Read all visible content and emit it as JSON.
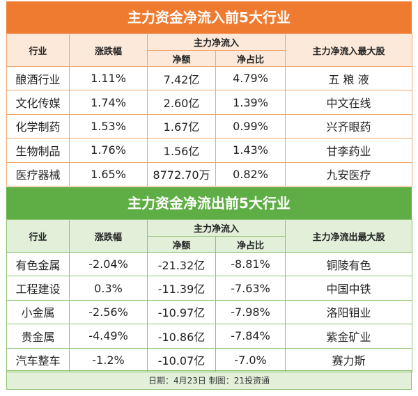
{
  "tables": [
    {
      "title": "主力资金净流入前5大行业",
      "header": {
        "industry": "行业",
        "change": "涨跌幅",
        "net_group": "主力净流入",
        "net": "净额",
        "ratio": "净占比",
        "top_stock": "主力净流入最大股"
      },
      "rows": [
        [
          "酿酒行业",
          "1.11%",
          "7.42亿",
          "4.79%",
          "五 粮 液"
        ],
        [
          "文化传媒",
          "1.74%",
          "2.60亿",
          "1.39%",
          "中文在线"
        ],
        [
          "化学制药",
          "1.53%",
          "1.67亿",
          "0.99%",
          "兴齐眼药"
        ],
        [
          "生物制品",
          "1.76%",
          "1.56亿",
          "1.43%",
          "甘李药业"
        ],
        [
          "医疗器械",
          "1.65%",
          "8772.70万",
          "0.82%",
          "九安医疗"
        ]
      ]
    },
    {
      "title": "主力资金净流出前5大行业",
      "header": {
        "industry": "行业",
        "change": "涨跌幅",
        "net_group": "主力净流入",
        "net": "净额",
        "ratio": "净占比",
        "top_stock": "主力净流出最大股"
      },
      "rows": [
        [
          "有色金属",
          "-2.04%",
          "-21.32亿",
          "-8.81%",
          "铜陵有色"
        ],
        [
          "工程建设",
          "0.3%",
          "-11.39亿",
          "-7.63%",
          "中国中铁"
        ],
        [
          "小金属",
          "-2.56%",
          "-10.97亿",
          "-7.98%",
          "洛阳钼业"
        ],
        [
          "贵金属",
          "-4.49%",
          "-10.86亿",
          "-7.84%",
          "紫金矿业"
        ],
        [
          "汽车整车",
          "-1.2%",
          "-10.07亿",
          "-7.0%",
          "赛力斯"
        ]
      ]
    }
  ],
  "footer": "日期：4月23日 制图：21投资通"
}
